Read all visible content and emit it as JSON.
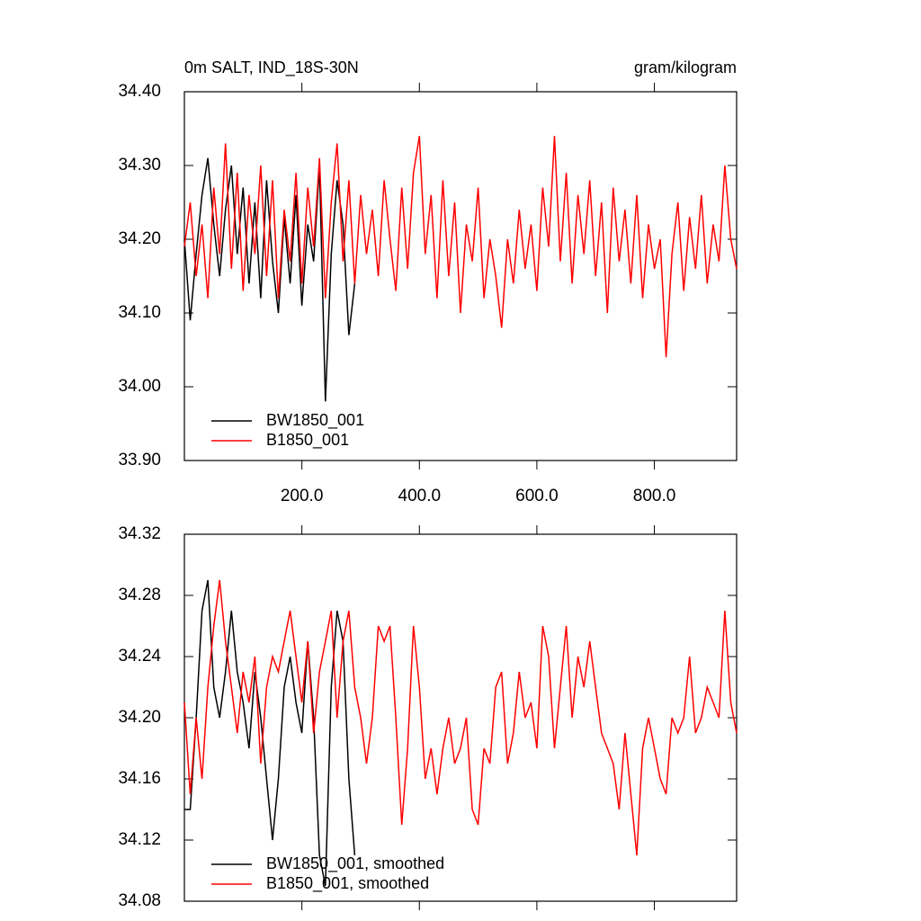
{
  "chart_data": [
    {
      "type": "line",
      "title": "0m SALT, IND_18S-30N",
      "subtitle": "gram/kilogram",
      "xlim": [
        0,
        940
      ],
      "ylim": [
        33.9,
        34.4
      ],
      "xticks": [
        {
          "value": 200,
          "label": "200.0"
        },
        {
          "value": 400,
          "label": "400.0"
        },
        {
          "value": 600,
          "label": "600.0"
        },
        {
          "value": 800,
          "label": "800.0"
        }
      ],
      "yticks": [
        {
          "value": 33.9,
          "label": "33.90"
        },
        {
          "value": 34.0,
          "label": "34.00"
        },
        {
          "value": 34.1,
          "label": "34.10"
        },
        {
          "value": 34.2,
          "label": "34.20"
        },
        {
          "value": 34.3,
          "label": "34.30"
        },
        {
          "value": 34.4,
          "label": "34.40"
        }
      ],
      "legend": "lower left",
      "series": [
        {
          "name": "BW1850_001",
          "color": "#000000",
          "x": [
            0,
            10,
            20,
            30,
            40,
            50,
            60,
            70,
            80,
            90,
            100,
            110,
            120,
            130,
            140,
            150,
            160,
            170,
            180,
            190,
            200,
            210,
            220,
            230,
            240,
            250,
            260,
            270,
            280,
            290
          ],
          "values": [
            34.2,
            34.09,
            34.18,
            34.26,
            34.31,
            34.22,
            34.15,
            34.24,
            34.3,
            34.18,
            34.27,
            34.14,
            34.25,
            34.12,
            34.28,
            34.17,
            34.1,
            34.23,
            34.14,
            34.26,
            34.11,
            34.22,
            34.17,
            34.3,
            33.98,
            34.18,
            34.28,
            34.22,
            34.07,
            34.14
          ]
        },
        {
          "name": "B1850_001",
          "color": "#ff0000",
          "x": [
            0,
            10,
            20,
            30,
            40,
            50,
            60,
            70,
            80,
            90,
            100,
            110,
            120,
            130,
            140,
            150,
            160,
            170,
            180,
            190,
            200,
            210,
            220,
            230,
            240,
            250,
            260,
            270,
            280,
            290,
            300,
            310,
            320,
            330,
            340,
            350,
            360,
            370,
            380,
            390,
            400,
            410,
            420,
            430,
            440,
            450,
            460,
            470,
            480,
            490,
            500,
            510,
            520,
            530,
            540,
            550,
            560,
            570,
            580,
            590,
            600,
            610,
            620,
            630,
            640,
            650,
            660,
            670,
            680,
            690,
            700,
            710,
            720,
            730,
            740,
            750,
            760,
            770,
            780,
            790,
            800,
            810,
            820,
            830,
            840,
            850,
            860,
            870,
            880,
            890,
            900,
            910,
            920,
            930,
            940
          ],
          "values": [
            34.19,
            34.25,
            34.15,
            34.22,
            34.12,
            34.27,
            34.18,
            34.33,
            34.16,
            34.29,
            34.13,
            34.26,
            34.18,
            34.3,
            34.15,
            34.28,
            34.12,
            34.24,
            34.17,
            34.29,
            34.14,
            34.27,
            34.19,
            34.31,
            34.12,
            34.25,
            34.33,
            34.17,
            34.28,
            34.14,
            34.26,
            34.18,
            34.24,
            34.15,
            34.28,
            34.2,
            34.13,
            34.27,
            34.16,
            34.29,
            34.34,
            34.18,
            34.26,
            34.12,
            34.28,
            34.15,
            34.25,
            34.1,
            34.22,
            34.17,
            34.27,
            34.12,
            34.2,
            34.15,
            34.08,
            34.2,
            34.14,
            34.24,
            34.16,
            34.22,
            34.13,
            34.27,
            34.19,
            34.34,
            34.17,
            34.29,
            34.14,
            34.26,
            34.18,
            34.28,
            34.15,
            34.25,
            34.1,
            34.27,
            34.17,
            34.24,
            34.14,
            34.26,
            34.12,
            34.22,
            34.16,
            34.2,
            34.04,
            34.18,
            34.25,
            34.13,
            34.23,
            34.16,
            34.26,
            34.14,
            34.22,
            34.17,
            34.3,
            34.2,
            34.16
          ]
        }
      ]
    },
    {
      "type": "line",
      "xlim": [
        0,
        940
      ],
      "ylim": [
        34.08,
        34.32
      ],
      "xticks": [
        200,
        400,
        600,
        800
      ],
      "yticks": [
        {
          "value": 34.08,
          "label": "34.08"
        },
        {
          "value": 34.12,
          "label": "34.12"
        },
        {
          "value": 34.16,
          "label": "34.16"
        },
        {
          "value": 34.2,
          "label": "34.20"
        },
        {
          "value": 34.24,
          "label": "34.24"
        },
        {
          "value": 34.28,
          "label": "34.28"
        },
        {
          "value": 34.32,
          "label": "34.32"
        }
      ],
      "legend": "lower left",
      "series": [
        {
          "name": "BW1850_001, smoothed",
          "color": "#000000",
          "x": [
            0,
            10,
            20,
            30,
            40,
            50,
            60,
            70,
            80,
            90,
            100,
            110,
            120,
            130,
            140,
            150,
            160,
            170,
            180,
            190,
            200,
            210,
            220,
            230,
            240,
            250,
            260,
            270,
            280,
            290
          ],
          "values": [
            34.14,
            34.14,
            34.2,
            34.27,
            34.29,
            34.22,
            34.2,
            34.23,
            34.27,
            34.23,
            34.21,
            34.18,
            34.23,
            34.2,
            34.16,
            34.12,
            34.16,
            34.22,
            34.24,
            34.21,
            34.19,
            34.25,
            34.2,
            34.11,
            34.09,
            34.22,
            34.27,
            34.25,
            34.16,
            34.11
          ]
        },
        {
          "name": "B1850_001, smoothed",
          "color": "#ff0000",
          "x": [
            0,
            10,
            20,
            30,
            40,
            50,
            60,
            70,
            80,
            90,
            100,
            110,
            120,
            130,
            140,
            150,
            160,
            170,
            180,
            190,
            200,
            210,
            220,
            230,
            240,
            250,
            260,
            270,
            280,
            290,
            300,
            310,
            320,
            330,
            340,
            350,
            360,
            370,
            380,
            390,
            400,
            410,
            420,
            430,
            440,
            450,
            460,
            470,
            480,
            490,
            500,
            510,
            520,
            530,
            540,
            550,
            560,
            570,
            580,
            590,
            600,
            610,
            620,
            630,
            640,
            650,
            660,
            670,
            680,
            690,
            700,
            710,
            720,
            730,
            740,
            750,
            760,
            770,
            780,
            790,
            800,
            810,
            820,
            830,
            840,
            850,
            860,
            870,
            880,
            890,
            900,
            910,
            920,
            930,
            940
          ],
          "values": [
            34.21,
            34.15,
            34.2,
            34.16,
            34.22,
            34.26,
            34.29,
            34.25,
            34.22,
            34.19,
            34.23,
            34.21,
            34.24,
            34.17,
            34.22,
            34.24,
            34.23,
            34.25,
            34.27,
            34.24,
            34.21,
            34.25,
            34.19,
            34.23,
            34.25,
            34.27,
            34.2,
            34.25,
            34.27,
            34.22,
            34.2,
            34.17,
            34.2,
            34.26,
            34.25,
            34.26,
            34.2,
            34.13,
            34.18,
            34.26,
            34.22,
            34.16,
            34.18,
            34.15,
            34.18,
            34.2,
            34.17,
            34.18,
            34.2,
            34.14,
            34.13,
            34.18,
            34.17,
            34.22,
            34.23,
            34.17,
            34.19,
            34.23,
            34.2,
            34.21,
            34.18,
            34.26,
            34.24,
            34.18,
            34.22,
            34.26,
            34.2,
            34.24,
            34.22,
            34.25,
            34.22,
            34.19,
            34.18,
            34.17,
            34.14,
            34.19,
            34.15,
            34.11,
            34.18,
            34.2,
            34.18,
            34.16,
            34.15,
            34.2,
            34.19,
            34.2,
            34.24,
            34.19,
            34.2,
            34.22,
            34.21,
            34.2,
            34.27,
            34.21,
            34.19
          ]
        }
      ]
    }
  ]
}
